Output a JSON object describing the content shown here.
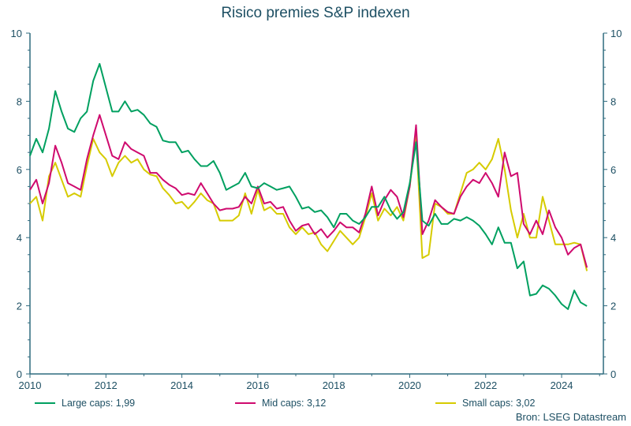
{
  "chart_data": {
    "type": "line",
    "title": "Risico premies S&P indexen",
    "xlabel": "",
    "ylabel": "",
    "ylim": [
      0,
      10
    ],
    "xlim": [
      2010,
      2025.1
    ],
    "yticks": [
      0,
      2,
      4,
      6,
      8,
      10
    ],
    "xticks": [
      2010,
      2012,
      2014,
      2016,
      2018,
      2020,
      2022,
      2024
    ],
    "grid": false,
    "legend_position": "bottom",
    "source": "Bron: LSEG Datastream",
    "x": [
      "2010-01",
      "2010-03",
      "2010-05",
      "2010-07",
      "2010-09",
      "2010-11",
      "2011-01",
      "2011-03",
      "2011-05",
      "2011-07",
      "2011-09",
      "2011-11",
      "2012-01",
      "2012-03",
      "2012-05",
      "2012-07",
      "2012-09",
      "2012-11",
      "2013-01",
      "2013-03",
      "2013-05",
      "2013-07",
      "2013-09",
      "2013-11",
      "2014-01",
      "2014-03",
      "2014-05",
      "2014-07",
      "2014-09",
      "2014-11",
      "2015-01",
      "2015-03",
      "2015-05",
      "2015-07",
      "2015-09",
      "2015-11",
      "2016-01",
      "2016-03",
      "2016-05",
      "2016-07",
      "2016-09",
      "2016-11",
      "2017-01",
      "2017-03",
      "2017-05",
      "2017-07",
      "2017-09",
      "2017-11",
      "2018-01",
      "2018-03",
      "2018-05",
      "2018-07",
      "2018-09",
      "2018-11",
      "2019-01",
      "2019-03",
      "2019-05",
      "2019-07",
      "2019-09",
      "2019-11",
      "2020-01",
      "2020-03",
      "2020-05",
      "2020-07",
      "2020-09",
      "2020-11",
      "2021-01",
      "2021-03",
      "2021-05",
      "2021-07",
      "2021-09",
      "2021-11",
      "2022-01",
      "2022-03",
      "2022-05",
      "2022-07",
      "2022-09",
      "2022-11",
      "2023-01",
      "2023-03",
      "2023-05",
      "2023-07",
      "2023-09",
      "2023-11",
      "2024-01",
      "2024-03",
      "2024-05",
      "2024-07",
      "2024-09"
    ],
    "series": [
      {
        "name": "Large caps: 1,99",
        "color": "#00a060",
        "values": [
          6.4,
          6.9,
          6.5,
          7.2,
          8.3,
          7.7,
          7.2,
          7.1,
          7.5,
          7.7,
          8.6,
          9.1,
          8.4,
          7.7,
          7.7,
          8.0,
          7.7,
          7.75,
          7.6,
          7.35,
          7.25,
          6.85,
          6.8,
          6.8,
          6.5,
          6.55,
          6.3,
          6.1,
          6.1,
          6.25,
          5.9,
          5.4,
          5.5,
          5.6,
          5.9,
          5.5,
          5.45,
          5.6,
          5.5,
          5.4,
          5.45,
          5.5,
          5.2,
          4.85,
          4.9,
          4.75,
          4.8,
          4.6,
          4.3,
          4.7,
          4.7,
          4.5,
          4.4,
          4.6,
          4.9,
          4.9,
          5.2,
          4.8,
          4.55,
          4.75,
          5.6,
          6.8,
          4.5,
          4.35,
          4.7,
          4.4,
          4.4,
          4.55,
          4.5,
          4.6,
          4.5,
          4.35,
          4.1,
          3.8,
          4.3,
          3.85,
          3.85,
          3.1,
          3.3,
          2.3,
          2.35,
          2.6,
          2.5,
          2.3,
          2.05,
          1.9,
          2.45,
          2.1,
          1.99
        ]
      },
      {
        "name": "Mid caps: 3,12",
        "color": "#cf0a6e",
        "values": [
          5.4,
          5.7,
          5.0,
          5.6,
          6.7,
          6.2,
          5.6,
          5.5,
          5.4,
          6.3,
          7.0,
          7.6,
          7.0,
          6.4,
          6.3,
          6.8,
          6.6,
          6.5,
          6.4,
          5.9,
          5.9,
          5.7,
          5.55,
          5.45,
          5.25,
          5.3,
          5.25,
          5.6,
          5.3,
          5.0,
          4.8,
          4.85,
          4.85,
          4.9,
          5.2,
          5.0,
          5.5,
          5.0,
          5.05,
          4.85,
          4.9,
          4.5,
          4.2,
          4.35,
          4.4,
          4.1,
          4.25,
          4.0,
          4.2,
          4.45,
          4.3,
          4.3,
          4.15,
          4.7,
          5.5,
          4.65,
          5.1,
          5.4,
          5.2,
          4.6,
          5.5,
          7.3,
          4.1,
          4.5,
          5.1,
          4.9,
          4.75,
          4.7,
          5.2,
          5.5,
          5.7,
          5.6,
          5.9,
          5.6,
          5.2,
          6.5,
          5.8,
          5.9,
          4.4,
          4.1,
          4.5,
          4.1,
          4.8,
          4.3,
          4.0,
          3.5,
          3.7,
          3.8,
          3.12
        ]
      },
      {
        "name": "Small caps: 3,02",
        "color": "#d6cb00",
        "values": [
          5.0,
          5.2,
          4.5,
          5.8,
          6.2,
          5.7,
          5.2,
          5.3,
          5.2,
          6.1,
          6.9,
          6.5,
          6.3,
          5.8,
          6.2,
          6.4,
          6.2,
          6.3,
          6.0,
          5.85,
          5.8,
          5.45,
          5.25,
          5.0,
          5.05,
          4.85,
          5.05,
          5.3,
          5.1,
          5.0,
          4.5,
          4.5,
          4.5,
          4.65,
          5.3,
          4.7,
          5.4,
          4.8,
          4.9,
          4.7,
          4.7,
          4.3,
          4.1,
          4.3,
          4.1,
          4.15,
          3.8,
          3.6,
          3.9,
          4.2,
          4.0,
          3.8,
          4.0,
          4.6,
          5.3,
          4.5,
          4.85,
          4.65,
          4.9,
          4.5,
          5.5,
          7.0,
          3.4,
          3.5,
          5.0,
          4.9,
          4.7,
          4.7,
          5.3,
          5.9,
          6.0,
          6.2,
          6.0,
          6.3,
          6.9,
          6.0,
          4.8,
          4.0,
          4.7,
          4.0,
          4.0,
          5.2,
          4.5,
          3.8,
          3.8,
          3.8,
          3.85,
          3.8,
          3.02
        ]
      }
    ]
  },
  "colors": {
    "axis": "#2f6b7f",
    "text": "#1d4f63"
  }
}
